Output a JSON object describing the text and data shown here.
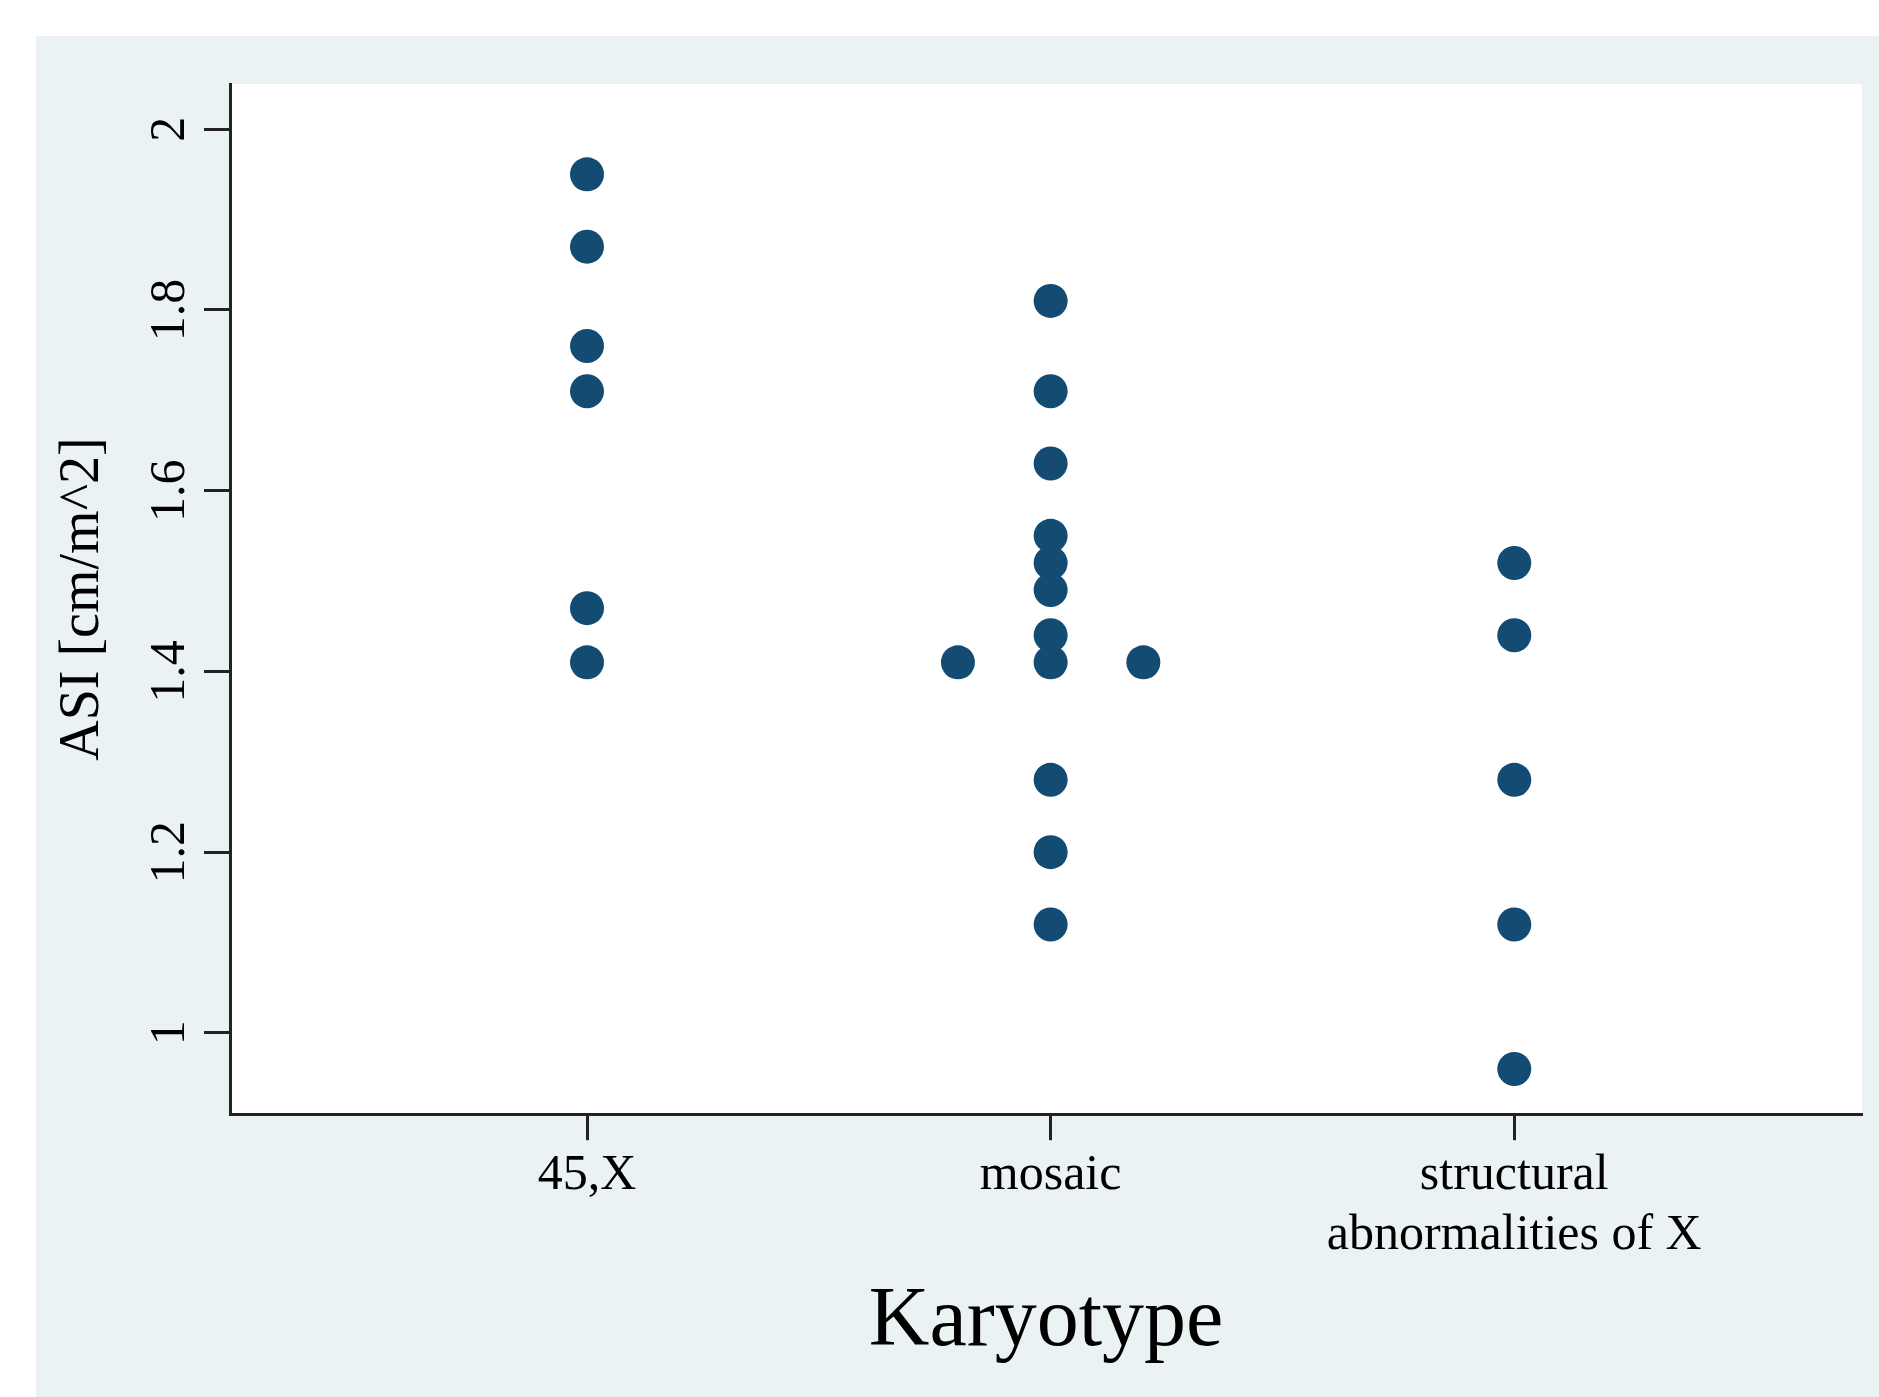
{
  "chart_data": {
    "type": "scatter",
    "xlabel": "Karyotype",
    "ylabel": "ASI [cm/m^2]",
    "categories": [
      "45,X",
      "mosaic",
      "structural abnormalities of X"
    ],
    "series": [
      {
        "color": "#134b73",
        "x": [
          "45,X",
          "45,X",
          "45,X",
          "45,X",
          "45,X",
          "45,X",
          "mosaic",
          "mosaic",
          "mosaic",
          "mosaic",
          "mosaic",
          "mosaic",
          "mosaic",
          "mosaic",
          "mosaic",
          "mosaic",
          "mosaic",
          "mosaic",
          "mosaic",
          "structural abnormalities of X",
          "structural abnormalities of X",
          "structural abnormalities of X",
          "structural abnormalities of X",
          "structural abnormalities of X"
        ],
        "values": [
          1.95,
          1.87,
          1.76,
          1.71,
          1.47,
          1.41,
          1.81,
          1.71,
          1.63,
          1.55,
          1.52,
          1.49,
          1.44,
          1.41,
          1.41,
          1.41,
          1.28,
          1.2,
          1.12,
          1.52,
          1.44,
          1.28,
          1.12,
          0.96
        ]
      }
    ],
    "ylim": [
      0.91,
      2.05
    ],
    "yticks": [
      1,
      1.2,
      1.4,
      1.6,
      1.8,
      2
    ],
    "grid": false,
    "legend": false,
    "marker": "circle"
  }
}
